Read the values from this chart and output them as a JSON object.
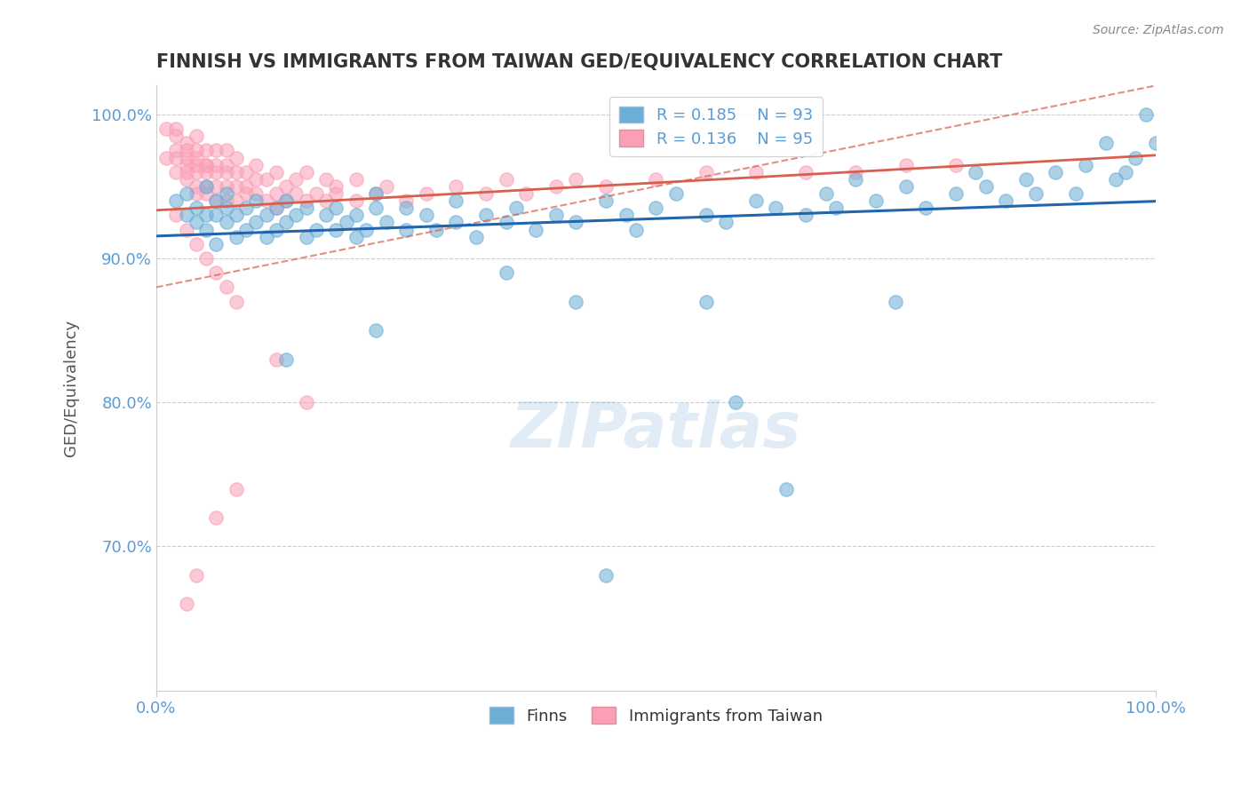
{
  "title": "FINNISH VS IMMIGRANTS FROM TAIWAN GED/EQUIVALENCY CORRELATION CHART",
  "source_text": "Source: ZipAtlas.com",
  "xlabel": "",
  "ylabel": "GED/Equivalency",
  "watermark": "ZIPatlas",
  "legend_entry1": {
    "label": "Finns",
    "R": "0.185",
    "N": "93"
  },
  "legend_entry2": {
    "label": "Immigrants from Taiwan",
    "R": "0.136",
    "N": "95"
  },
  "color_finns": "#6baed6",
  "color_taiwan": "#fa9fb5",
  "trendline_color_finns": "#2166ac",
  "trendline_color_taiwan": "#d6604d",
  "trendline_dashed_color": "#d6604d",
  "background_color": "#ffffff",
  "grid_color": "#aaaaaa",
  "axis_label_color": "#5b9bd5",
  "title_color": "#333333",
  "xlim": [
    0.0,
    1.0
  ],
  "ylim": [
    0.6,
    1.02
  ],
  "yticks": [
    0.7,
    0.8,
    0.9,
    1.0
  ],
  "ytick_labels": [
    "70.0%",
    "80.0%",
    "90.0%",
    "100.0%"
  ],
  "xticks": [
    0.0,
    0.25,
    0.5,
    0.75,
    1.0
  ],
  "xtick_labels": [
    "0.0%",
    "",
    "",
    "",
    "100.0%"
  ],
  "finns_x": [
    0.02,
    0.03,
    0.03,
    0.04,
    0.04,
    0.05,
    0.05,
    0.05,
    0.06,
    0.06,
    0.06,
    0.07,
    0.07,
    0.07,
    0.08,
    0.08,
    0.09,
    0.09,
    0.1,
    0.1,
    0.11,
    0.11,
    0.12,
    0.12,
    0.13,
    0.13,
    0.14,
    0.15,
    0.15,
    0.16,
    0.17,
    0.18,
    0.18,
    0.19,
    0.2,
    0.2,
    0.21,
    0.22,
    0.22,
    0.23,
    0.25,
    0.25,
    0.27,
    0.28,
    0.3,
    0.3,
    0.32,
    0.33,
    0.35,
    0.36,
    0.38,
    0.4,
    0.42,
    0.45,
    0.47,
    0.48,
    0.5,
    0.52,
    0.55,
    0.57,
    0.6,
    0.62,
    0.65,
    0.67,
    0.68,
    0.7,
    0.72,
    0.75,
    0.77,
    0.8,
    0.82,
    0.83,
    0.85,
    0.87,
    0.88,
    0.9,
    0.92,
    0.93,
    0.95,
    0.96,
    0.97,
    0.98,
    0.99,
    1.0,
    0.42,
    0.55,
    0.58,
    0.22,
    0.35,
    0.63,
    0.74,
    0.13,
    0.45
  ],
  "finns_y": [
    0.94,
    0.93,
    0.945,
    0.925,
    0.935,
    0.92,
    0.93,
    0.95,
    0.91,
    0.93,
    0.94,
    0.925,
    0.935,
    0.945,
    0.915,
    0.93,
    0.92,
    0.935,
    0.925,
    0.94,
    0.915,
    0.93,
    0.92,
    0.935,
    0.925,
    0.94,
    0.93,
    0.915,
    0.935,
    0.92,
    0.93,
    0.92,
    0.935,
    0.925,
    0.915,
    0.93,
    0.92,
    0.935,
    0.945,
    0.925,
    0.92,
    0.935,
    0.93,
    0.92,
    0.94,
    0.925,
    0.915,
    0.93,
    0.925,
    0.935,
    0.92,
    0.93,
    0.925,
    0.94,
    0.93,
    0.92,
    0.935,
    0.945,
    0.93,
    0.925,
    0.94,
    0.935,
    0.93,
    0.945,
    0.935,
    0.955,
    0.94,
    0.95,
    0.935,
    0.945,
    0.96,
    0.95,
    0.94,
    0.955,
    0.945,
    0.96,
    0.945,
    0.965,
    0.98,
    0.955,
    0.96,
    0.97,
    1.0,
    0.98,
    0.87,
    0.87,
    0.8,
    0.85,
    0.89,
    0.74,
    0.87,
    0.83,
    0.68
  ],
  "taiwan_x": [
    0.01,
    0.01,
    0.02,
    0.02,
    0.02,
    0.02,
    0.02,
    0.03,
    0.03,
    0.03,
    0.03,
    0.03,
    0.03,
    0.04,
    0.04,
    0.04,
    0.04,
    0.04,
    0.04,
    0.04,
    0.05,
    0.05,
    0.05,
    0.05,
    0.05,
    0.05,
    0.06,
    0.06,
    0.06,
    0.06,
    0.06,
    0.07,
    0.07,
    0.07,
    0.07,
    0.07,
    0.08,
    0.08,
    0.08,
    0.08,
    0.09,
    0.09,
    0.09,
    0.1,
    0.1,
    0.1,
    0.11,
    0.11,
    0.12,
    0.12,
    0.12,
    0.13,
    0.13,
    0.14,
    0.14,
    0.15,
    0.15,
    0.16,
    0.17,
    0.17,
    0.18,
    0.18,
    0.2,
    0.2,
    0.22,
    0.23,
    0.25,
    0.27,
    0.3,
    0.33,
    0.35,
    0.37,
    0.4,
    0.42,
    0.45,
    0.5,
    0.55,
    0.6,
    0.65,
    0.7,
    0.75,
    0.8,
    0.02,
    0.03,
    0.04,
    0.05,
    0.06,
    0.07,
    0.08,
    0.12,
    0.15,
    0.08,
    0.06,
    0.04,
    0.03
  ],
  "taiwan_y": [
    0.97,
    0.99,
    0.975,
    0.985,
    0.96,
    0.99,
    0.97,
    0.975,
    0.96,
    0.98,
    0.965,
    0.955,
    0.97,
    0.965,
    0.95,
    0.975,
    0.96,
    0.945,
    0.97,
    0.985,
    0.965,
    0.95,
    0.96,
    0.975,
    0.945,
    0.965,
    0.96,
    0.95,
    0.965,
    0.94,
    0.975,
    0.95,
    0.96,
    0.94,
    0.965,
    0.975,
    0.95,
    0.94,
    0.96,
    0.97,
    0.945,
    0.96,
    0.95,
    0.955,
    0.945,
    0.965,
    0.94,
    0.955,
    0.945,
    0.935,
    0.96,
    0.95,
    0.94,
    0.955,
    0.945,
    0.94,
    0.96,
    0.945,
    0.955,
    0.94,
    0.95,
    0.945,
    0.94,
    0.955,
    0.945,
    0.95,
    0.94,
    0.945,
    0.95,
    0.945,
    0.955,
    0.945,
    0.95,
    0.955,
    0.95,
    0.955,
    0.96,
    0.96,
    0.96,
    0.96,
    0.965,
    0.965,
    0.93,
    0.92,
    0.91,
    0.9,
    0.89,
    0.88,
    0.87,
    0.83,
    0.8,
    0.74,
    0.72,
    0.68,
    0.66
  ]
}
